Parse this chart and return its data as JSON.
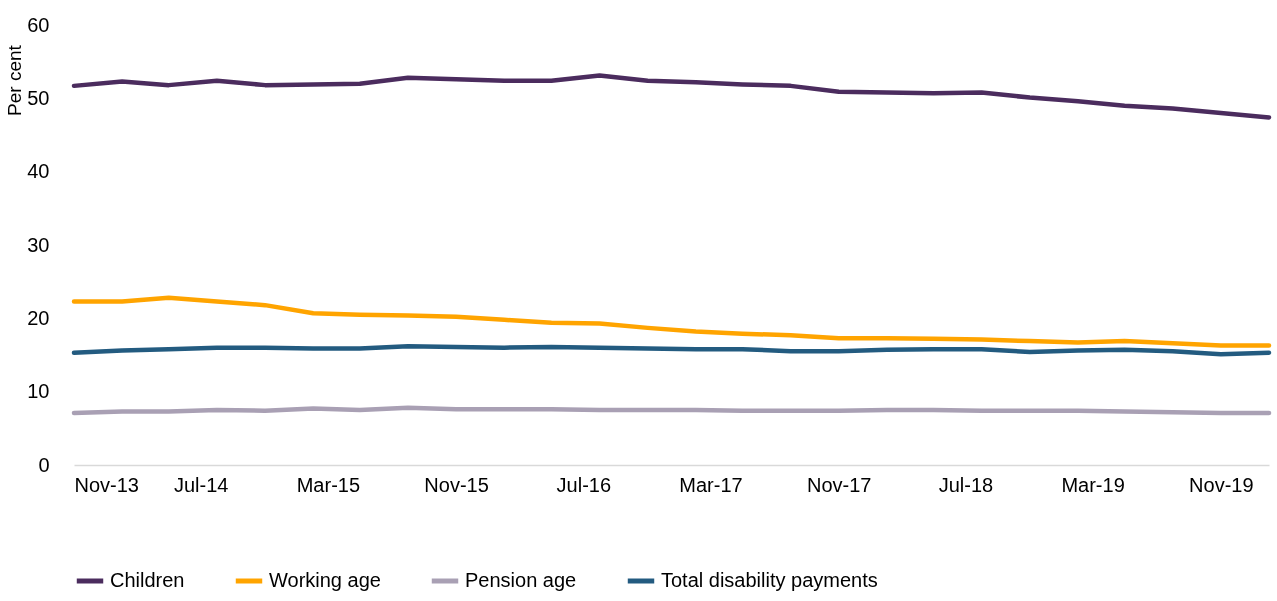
{
  "chart_data": {
    "type": "line",
    "ylabel": "Per cent",
    "x": [
      "2013-11",
      "2014-02",
      "2014-05",
      "2014-08",
      "2014-11",
      "2015-02",
      "2015-05",
      "2015-08",
      "2015-11",
      "2016-02",
      "2016-05",
      "2016-08",
      "2016-11",
      "2017-02",
      "2017-05",
      "2017-08",
      "2017-11",
      "2018-02",
      "2018-05",
      "2018-08",
      "2018-11",
      "2019-02",
      "2019-05",
      "2019-08",
      "2019-11",
      "2020-02"
    ],
    "series": [
      {
        "name": "Children",
        "color": "#4b2c5e",
        "values": [
          51.7,
          52.3,
          51.8,
          52.4,
          51.8,
          51.9,
          52.0,
          52.8,
          52.6,
          52.4,
          52.4,
          53.1,
          52.4,
          52.2,
          51.9,
          51.7,
          50.9,
          50.8,
          50.7,
          50.8,
          50.1,
          49.6,
          49.0,
          48.6,
          48.0,
          47.4
        ]
      },
      {
        "name": "Working age",
        "color": "#ffa400",
        "values": [
          22.3,
          22.3,
          22.8,
          22.3,
          21.8,
          20.7,
          20.5,
          20.4,
          20.2,
          19.8,
          19.4,
          19.3,
          18.7,
          18.2,
          17.9,
          17.7,
          17.3,
          17.3,
          17.2,
          17.1,
          16.9,
          16.7,
          16.9,
          16.6,
          16.3,
          16.3
        ]
      },
      {
        "name": "Pension age",
        "color": "#a9a0b4",
        "values": [
          7.1,
          7.3,
          7.3,
          7.5,
          7.4,
          7.7,
          7.5,
          7.8,
          7.6,
          7.6,
          7.6,
          7.5,
          7.5,
          7.5,
          7.4,
          7.4,
          7.4,
          7.5,
          7.5,
          7.4,
          7.4,
          7.4,
          7.3,
          7.2,
          7.1,
          7.1
        ]
      },
      {
        "name": "Total disability payments",
        "color": "#235b80",
        "values": [
          15.3,
          15.6,
          15.8,
          16.0,
          16.0,
          15.9,
          15.9,
          16.2,
          16.1,
          16.0,
          16.1,
          16.0,
          15.9,
          15.8,
          15.8,
          15.5,
          15.5,
          15.7,
          15.8,
          15.8,
          15.4,
          15.6,
          15.7,
          15.5,
          15.1,
          15.3
        ]
      }
    ],
    "xlim": [
      "2013-11",
      "2020-02"
    ],
    "xticks": [
      {
        "value": "2013-11",
        "label": "Nov-13"
      },
      {
        "value": "2014-07",
        "label": "Jul-14"
      },
      {
        "value": "2015-03",
        "label": "Mar-15"
      },
      {
        "value": "2015-11",
        "label": "Nov-15"
      },
      {
        "value": "2016-07",
        "label": "Jul-16"
      },
      {
        "value": "2017-03",
        "label": "Mar-17"
      },
      {
        "value": "2017-11",
        "label": "Nov-17"
      },
      {
        "value": "2018-07",
        "label": "Jul-18"
      },
      {
        "value": "2019-03",
        "label": "Mar-19"
      },
      {
        "value": "2019-11",
        "label": "Nov-19"
      }
    ],
    "ylim": [
      0,
      60
    ],
    "yticks": [
      0,
      10,
      20,
      30,
      40,
      50,
      60
    ],
    "grid": false,
    "legend": "bottom"
  }
}
